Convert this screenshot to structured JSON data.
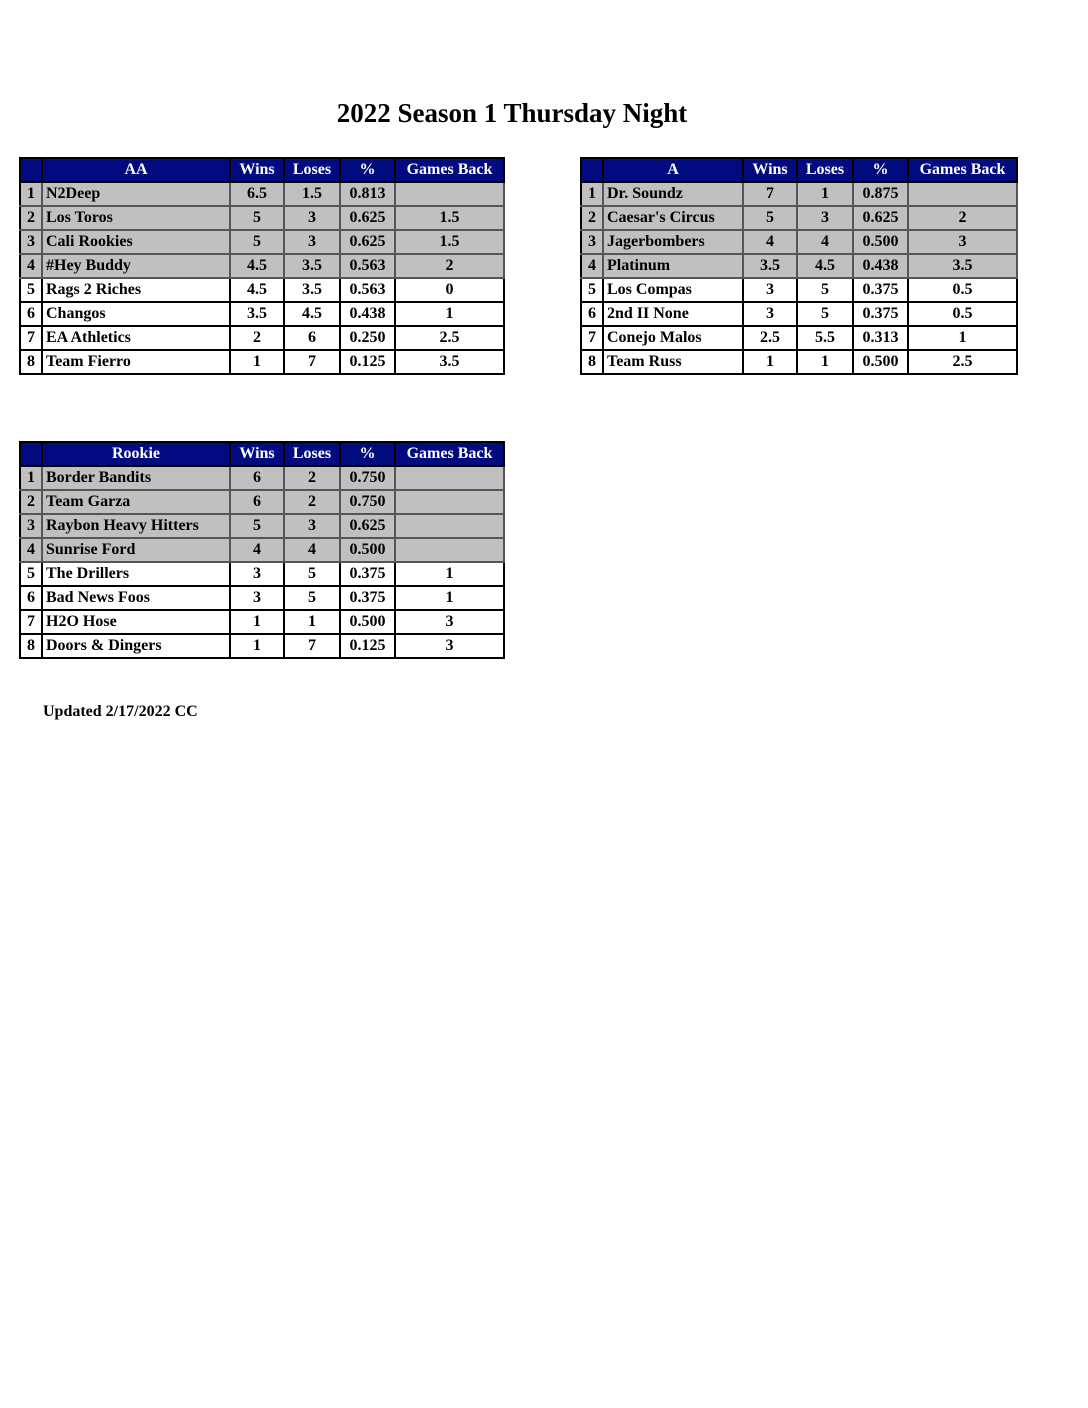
{
  "title": "2022 Season 1 Thursday Night",
  "columns": [
    "Wins",
    "Loses",
    "%",
    "Games Back"
  ],
  "colors": {
    "header": "#020a80",
    "playoff_row": "#c0c0c0"
  },
  "tables": [
    {
      "id": "aa",
      "division": "AA",
      "rows": [
        [
          "1",
          "N2Deep",
          "6.5",
          "1.5",
          "0.813",
          ""
        ],
        [
          "2",
          "Los Toros",
          "5",
          "3",
          "0.625",
          "1.5"
        ],
        [
          "3",
          "Cali Rookies",
          "5",
          "3",
          "0.625",
          "1.5"
        ],
        [
          "4",
          "#Hey Buddy",
          "4.5",
          "3.5",
          "0.563",
          "2"
        ],
        [
          "5",
          "Rags 2 Riches",
          "4.5",
          "3.5",
          "0.563",
          "0"
        ],
        [
          "6",
          "Changos",
          "3.5",
          "4.5",
          "0.438",
          "1"
        ],
        [
          "7",
          "EA Athletics",
          "2",
          "6",
          "0.250",
          "2.5"
        ],
        [
          "8",
          "Team Fierro",
          "1",
          "7",
          "0.125",
          "3.5"
        ]
      ]
    },
    {
      "id": "a",
      "division": "A",
      "rows": [
        [
          "1",
          "Dr. Soundz",
          "7",
          "1",
          "0.875",
          ""
        ],
        [
          "2",
          "Caesar's Circus",
          "5",
          "3",
          "0.625",
          "2"
        ],
        [
          "3",
          "Jagerbombers",
          "4",
          "4",
          "0.500",
          "3"
        ],
        [
          "4",
          "Platinum",
          "3.5",
          "4.5",
          "0.438",
          "3.5"
        ],
        [
          "5",
          "Los Compas",
          "3",
          "5",
          "0.375",
          "0.5"
        ],
        [
          "6",
          "2nd II None",
          "3",
          "5",
          "0.375",
          "0.5"
        ],
        [
          "7",
          "Conejo Malos",
          "2.5",
          "5.5",
          "0.313",
          "1"
        ],
        [
          "8",
          "Team Russ",
          "1",
          "1",
          "0.500",
          "2.5"
        ]
      ]
    },
    {
      "id": "rk",
      "division": "Rookie",
      "rows": [
        [
          "1",
          "Border Bandits",
          "6",
          "2",
          "0.750",
          ""
        ],
        [
          "2",
          "Team Garza",
          "6",
          "2",
          "0.750",
          ""
        ],
        [
          "3",
          "Raybon Heavy Hitters",
          "5",
          "3",
          "0.625",
          ""
        ],
        [
          "4",
          "Sunrise Ford",
          "4",
          "4",
          "0.500",
          ""
        ],
        [
          "5",
          "The Drillers",
          "3",
          "5",
          "0.375",
          "1"
        ],
        [
          "6",
          "Bad News Foos",
          "3",
          "5",
          "0.375",
          "1"
        ],
        [
          "7",
          "H2O Hose",
          "1",
          "1",
          "0.500",
          "3"
        ],
        [
          "8",
          "Doors & Dingers",
          "1",
          "7",
          "0.125",
          "3"
        ]
      ]
    }
  ],
  "updated": "Updated 2/17/2022 CC"
}
